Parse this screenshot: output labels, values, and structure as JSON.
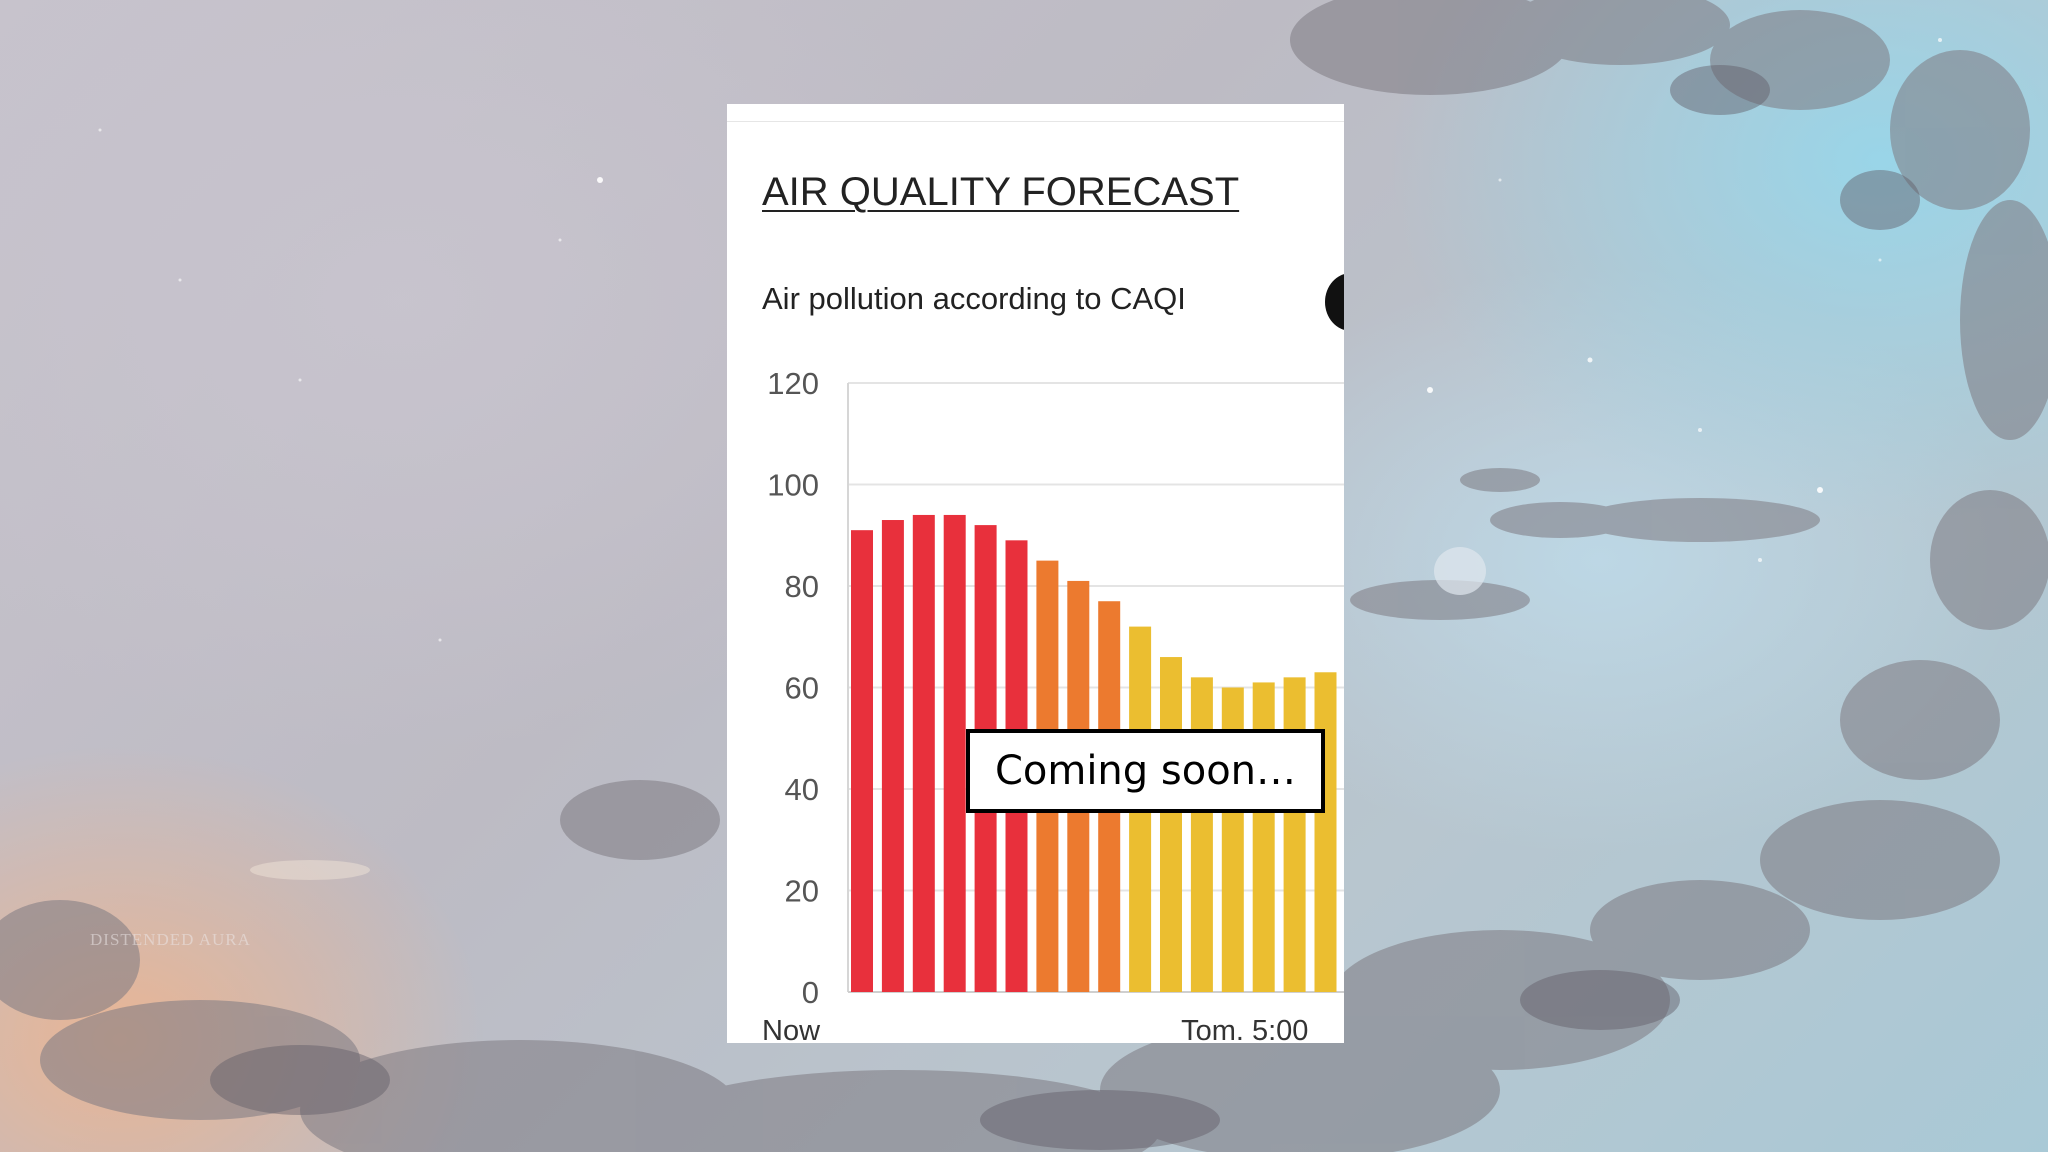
{
  "background": {
    "watermark_text": "DISTENDED AURA"
  },
  "panel": {
    "title": "AIR QUALITY FORECAST",
    "subtitle": "Air pollution according to CAQI"
  },
  "callout": {
    "text": "Coming soon…"
  },
  "colors": {
    "red": "#e8303c",
    "orange": "#ec7a2f",
    "yellow": "#ebbe30"
  },
  "chart_data": {
    "type": "bar",
    "title": "",
    "xlabel": "",
    "ylabel": "",
    "ylim": [
      0,
      120
    ],
    "yticks": [
      0,
      20,
      40,
      60,
      80,
      100,
      120
    ],
    "x_tick_labels": [
      {
        "label": "Now",
        "index": 0
      },
      {
        "label": "Tom. 5:00",
        "index": 9
      }
    ],
    "grid": true,
    "values": [
      91,
      93,
      94,
      94,
      92,
      89,
      85,
      81,
      77,
      72,
      66,
      62,
      60,
      61,
      62,
      63
    ],
    "bar_colors": [
      "red",
      "red",
      "red",
      "red",
      "red",
      "red",
      "orange",
      "orange",
      "orange",
      "yellow",
      "yellow",
      "yellow",
      "yellow",
      "yellow",
      "yellow",
      "yellow"
    ]
  }
}
